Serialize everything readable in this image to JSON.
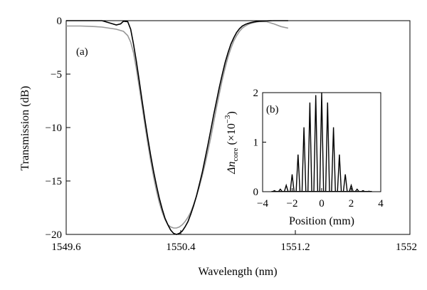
{
  "chart_data": [
    {
      "type": "line",
      "panel_label": "(a)",
      "xlabel": "Wavelength (nm)",
      "ylabel": "Transmission (dB)",
      "xlim": [
        1549.6,
        1552.0
      ],
      "ylim": [
        -20,
        0
      ],
      "xticks": [
        "1549.6",
        "1550.4",
        "1551.2",
        "1552"
      ],
      "xtick_values": [
        1549.6,
        1550.4,
        1551.2,
        1552.0
      ],
      "yticks": [
        "0",
        "−5",
        "−10",
        "−15",
        "−20"
      ],
      "ytick_values": [
        0,
        -5,
        -10,
        -15,
        -20
      ],
      "grid": false,
      "series": [
        {
          "color": "#000000",
          "x": [
            1549.6,
            1549.85,
            1549.9,
            1549.95,
            1549.98,
            1550.0,
            1550.03,
            1550.05,
            1550.07,
            1550.09,
            1550.11,
            1550.13,
            1550.15,
            1550.17,
            1550.19,
            1550.21,
            1550.23,
            1550.25,
            1550.27,
            1550.29,
            1550.31,
            1550.33,
            1550.35,
            1550.37,
            1550.39,
            1550.41,
            1550.43,
            1550.45,
            1550.47,
            1550.49,
            1550.51,
            1550.53,
            1550.55,
            1550.57,
            1550.59,
            1550.61,
            1550.63,
            1550.65,
            1550.67,
            1550.69,
            1550.71,
            1550.73,
            1550.75,
            1550.77,
            1550.79,
            1550.81,
            1550.83,
            1550.85,
            1550.87,
            1550.89,
            1550.91,
            1550.93,
            1550.95,
            1551.0,
            1551.05,
            1551.1,
            1551.15
          ],
          "y": [
            0,
            0,
            -0.2,
            -0.4,
            -0.3,
            -0.05,
            -0.1,
            -0.8,
            -2.2,
            -3.8,
            -5.6,
            -7.5,
            -9.3,
            -11.0,
            -12.6,
            -14.1,
            -15.4,
            -16.6,
            -17.6,
            -18.5,
            -19.1,
            -19.6,
            -19.9,
            -20.0,
            -19.9,
            -19.7,
            -19.3,
            -18.8,
            -18.1,
            -17.3,
            -16.4,
            -15.3,
            -14.2,
            -12.9,
            -11.6,
            -10.2,
            -8.8,
            -7.5,
            -6.2,
            -5.0,
            -3.9,
            -3.0,
            -2.2,
            -1.6,
            -1.1,
            -0.75,
            -0.5,
            -0.35,
            -0.25,
            -0.18,
            -0.12,
            -0.08,
            -0.05,
            -0.02,
            0,
            0,
            0
          ]
        },
        {
          "color": "#999999",
          "x": [
            1549.6,
            1549.7,
            1549.8,
            1549.85,
            1549.9,
            1549.95,
            1550.0,
            1550.03,
            1550.05,
            1550.07,
            1550.09,
            1550.11,
            1550.13,
            1550.15,
            1550.17,
            1550.19,
            1550.21,
            1550.23,
            1550.25,
            1550.27,
            1550.29,
            1550.31,
            1550.33,
            1550.35,
            1550.37,
            1550.39,
            1550.41,
            1550.43,
            1550.45,
            1550.47,
            1550.49,
            1550.51,
            1550.53,
            1550.55,
            1550.57,
            1550.59,
            1550.61,
            1550.63,
            1550.65,
            1550.67,
            1550.69,
            1550.71,
            1550.73,
            1550.75,
            1550.77,
            1550.79,
            1550.81,
            1550.83,
            1550.85,
            1550.87,
            1550.89,
            1550.91,
            1550.93,
            1550.95,
            1551.0,
            1551.05,
            1551.1,
            1551.15
          ],
          "y": [
            -0.5,
            -0.5,
            -0.55,
            -0.6,
            -0.7,
            -0.8,
            -1.0,
            -1.4,
            -2.0,
            -3.0,
            -4.5,
            -6.2,
            -8.0,
            -9.8,
            -11.5,
            -13.1,
            -14.6,
            -15.9,
            -17.0,
            -17.9,
            -18.6,
            -19.1,
            -19.3,
            -19.4,
            -19.4,
            -19.3,
            -19.1,
            -18.8,
            -18.4,
            -17.9,
            -17.2,
            -16.4,
            -15.5,
            -14.5,
            -13.4,
            -12.2,
            -10.9,
            -9.5,
            -8.1,
            -6.8,
            -5.5,
            -4.4,
            -3.4,
            -2.6,
            -1.9,
            -1.4,
            -1.0,
            -0.7,
            -0.5,
            -0.35,
            -0.25,
            -0.18,
            -0.12,
            -0.08,
            -0.1,
            -0.3,
            -0.55,
            -0.7
          ]
        }
      ]
    },
    {
      "type": "line",
      "panel_label": "(b)",
      "xlabel": "Position (mm)",
      "ylabel_symbol": "Δn",
      "ylabel_subscript": "core",
      "ylabel_unit_prefix": "(×10",
      "ylabel_unit_exponent": "−3",
      "ylabel_unit_suffix": ")",
      "xlim": [
        -4,
        4
      ],
      "ylim": [
        0,
        2
      ],
      "xticks": [
        "−4",
        "−2",
        "0",
        "2",
        "4"
      ],
      "xtick_values": [
        -4,
        -2,
        0,
        2,
        4
      ],
      "yticks": [
        "0",
        "1",
        "2"
      ],
      "ytick_values": [
        0,
        1,
        2
      ],
      "grid": false,
      "series": [
        {
          "color": "#000000",
          "peak_positions": [
            -3.2,
            -2.8,
            -2.4,
            -2.0,
            -1.6,
            -1.2,
            -0.8,
            -0.4,
            0.0,
            0.4,
            0.8,
            1.2,
            1.6,
            2.0,
            2.4,
            2.8,
            3.2
          ],
          "peak_values": [
            0.02,
            0.05,
            0.13,
            0.35,
            0.75,
            1.3,
            1.8,
            1.95,
            2.0,
            1.8,
            1.3,
            0.75,
            0.35,
            0.13,
            0.05,
            0.02,
            0.01
          ]
        }
      ]
    }
  ]
}
